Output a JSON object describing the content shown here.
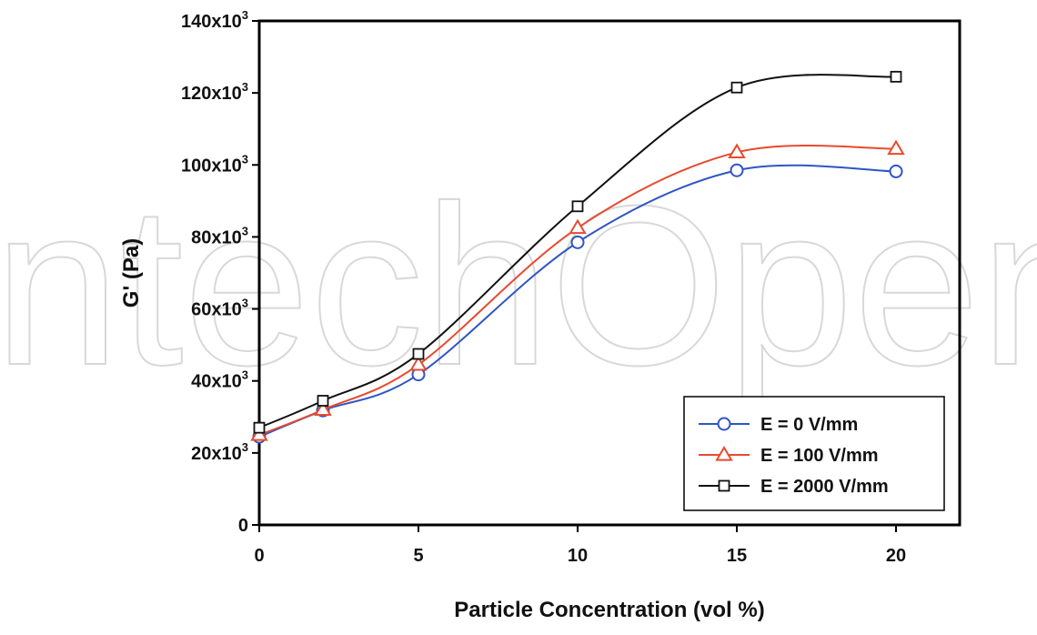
{
  "chart_data": {
    "type": "line",
    "title": "",
    "xlabel": "Particle Concentration (vol %)",
    "ylabel": "G' (Pa)",
    "xlim": [
      0,
      22
    ],
    "ylim": [
      0,
      140000
    ],
    "x_ticks": [
      0,
      5,
      10,
      15,
      20
    ],
    "x_tick_labels": [
      "0",
      "5",
      "10",
      "15",
      "20"
    ],
    "y_ticks": [
      0,
      20000,
      40000,
      60000,
      80000,
      100000,
      120000,
      140000
    ],
    "y_tick_labels": [
      {
        "base": "0",
        "exp": ""
      },
      {
        "base": "20x10",
        "exp": "3"
      },
      {
        "base": "40x10",
        "exp": "3"
      },
      {
        "base": "60x10",
        "exp": "3"
      },
      {
        "base": "80x10",
        "exp": "3"
      },
      {
        "base": "100x10",
        "exp": "3"
      },
      {
        "base": "120x10",
        "exp": "3"
      },
      {
        "base": "140x10",
        "exp": "3"
      }
    ],
    "grid": false,
    "legend_position": "bottom-right",
    "x": [
      0,
      2,
      5,
      10,
      15,
      20
    ],
    "series": [
      {
        "name": "E = 0 V/mm",
        "marker": "circle",
        "color": "#2f55c4",
        "values": [
          24500,
          31800,
          41800,
          78500,
          98500,
          98200
        ]
      },
      {
        "name": "E = 100 V/mm",
        "marker": "triangle",
        "color": "#e84a2f",
        "values": [
          25000,
          32000,
          44500,
          82500,
          103500,
          104500
        ]
      },
      {
        "name": "E = 2000 V/mm",
        "marker": "square",
        "color": "#111111",
        "values": [
          27000,
          34500,
          47500,
          88500,
          121500,
          124500
        ]
      }
    ]
  },
  "watermark": {
    "text": "IntechOpen",
    "color": "#d8d8d8"
  }
}
